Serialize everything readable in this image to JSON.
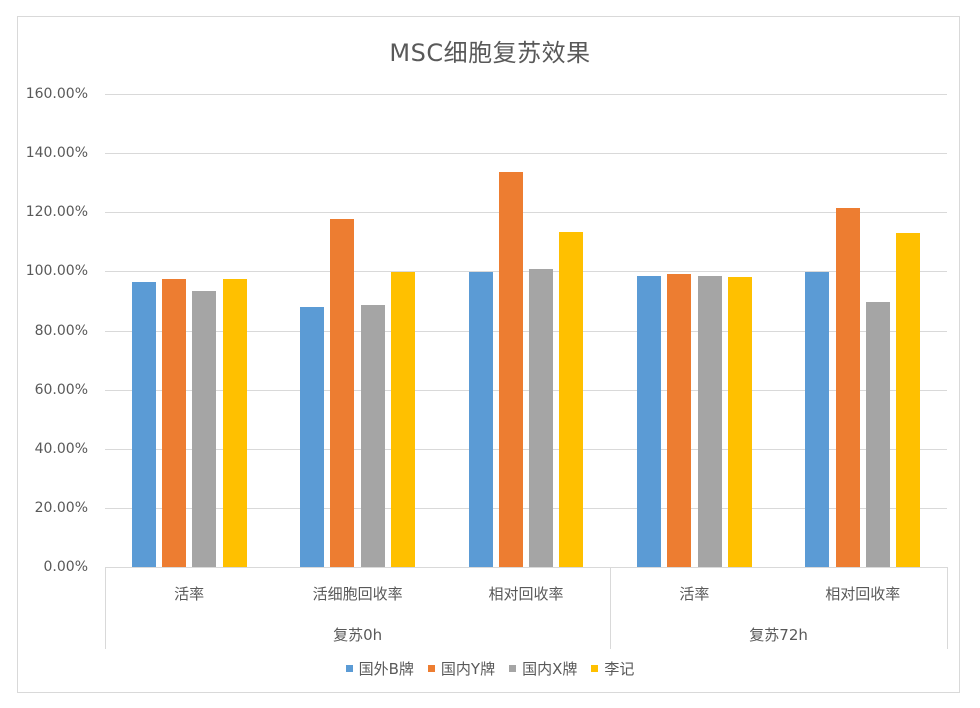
{
  "chart_data": {
    "type": "bar",
    "title": "MSC细胞复苏效果",
    "xlabel": "",
    "ylabel": "",
    "ylim": [
      0,
      1.6
    ],
    "y_ticks": [
      "0.00%",
      "20.00%",
      "40.00%",
      "60.00%",
      "80.00%",
      "100.00%",
      "120.00%",
      "140.00%",
      "160.00%"
    ],
    "grid": true,
    "legend_position": "bottom",
    "groups": [
      {
        "label": "复苏0h",
        "categories": [
          "活率",
          "活细胞回收率",
          "相对回收率"
        ]
      },
      {
        "label": "复苏72h",
        "categories": [
          "活率",
          "相对回收率"
        ]
      }
    ],
    "categories": [
      "复苏0h / 活率",
      "复苏0h / 活细胞回收率",
      "复苏0h / 相对回收率",
      "复苏72h / 活率",
      "复苏72h / 相对回收率"
    ],
    "category_labels": [
      "活率",
      "活细胞回收率",
      "相对回收率",
      "活率",
      "相对回收率"
    ],
    "series": [
      {
        "name": "国外B牌",
        "color": "#5b9bd5",
        "values": [
          0.963,
          0.878,
          0.997,
          0.983,
          0.997
        ]
      },
      {
        "name": "国内Y牌",
        "color": "#ed7d31",
        "values": [
          0.973,
          1.176,
          1.336,
          0.99,
          1.214
        ]
      },
      {
        "name": "国内X牌",
        "color": "#a5a5a5",
        "values": [
          0.932,
          0.888,
          1.007,
          0.986,
          0.898
        ]
      },
      {
        "name": "李记",
        "color": "#ffc000",
        "values": [
          0.973,
          0.997,
          1.132,
          0.98,
          1.129
        ]
      }
    ]
  }
}
